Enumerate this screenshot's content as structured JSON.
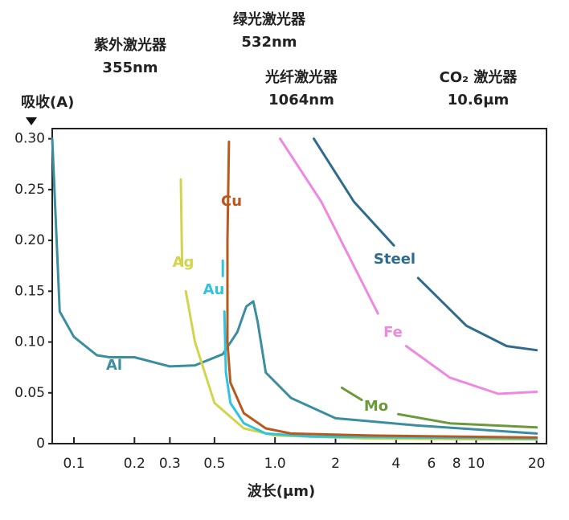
{
  "chart_data": {
    "type": "line",
    "y_label": "吸收(A)",
    "x_label": "波长(μm)",
    "annotations": [
      {
        "text": "紫外激光器",
        "subtext": "355nm"
      },
      {
        "text": "绿光激光器",
        "subtext": "532nm"
      },
      {
        "text": "光纤激光器",
        "subtext": "1064nm"
      },
      {
        "text": "CO₂ 激光器",
        "subtext": "10.6μm"
      }
    ],
    "xscale": "log",
    "xlim": [
      0.078,
      22.4
    ],
    "xticks": [
      0.1,
      0.2,
      0.3,
      0.5,
      {
        "value": 1,
        "label": "1.0"
      },
      2,
      4,
      6,
      8,
      10,
      20
    ],
    "ylim": [
      0,
      0.31
    ],
    "yticks": [
      0,
      {
        "value": 0.05,
        "label": "0.05"
      },
      {
        "value": 0.1,
        "label": "0.10"
      },
      {
        "value": 0.15,
        "label": "0.15"
      },
      {
        "value": 0.2,
        "label": "0.20"
      },
      {
        "value": 0.25,
        "label": "0.25"
      },
      {
        "value": 0.3,
        "label": "0.30"
      }
    ],
    "series": [
      {
        "name": "Al",
        "color": "#3a8ea0",
        "x": [
          0.078,
          0.085,
          0.1,
          0.13,
          0.15,
          0.2,
          0.3,
          0.4,
          0.55,
          0.65,
          0.72,
          0.78,
          0.82,
          0.9,
          1.2,
          2,
          5,
          20
        ],
        "values": [
          0.3,
          0.13,
          0.105,
          0.087,
          0.085,
          0.085,
          0.076,
          0.077,
          0.088,
          0.11,
          0.135,
          0.14,
          0.12,
          0.07,
          0.045,
          0.025,
          0.018,
          0.01
        ]
      },
      {
        "name": "Ag",
        "color": "#d2d44e",
        "x": [
          0.34,
          0.345,
          null,
          0.36,
          0.4,
          0.5,
          0.7,
          1,
          3,
          20
        ],
        "values": [
          0.26,
          0.175,
          null,
          0.15,
          0.1,
          0.04,
          0.015,
          0.008,
          0.005,
          0.004
        ]
      },
      {
        "name": "Au",
        "color": "#2ec4e0",
        "x": [
          0.55,
          0.55,
          null,
          0.56,
          0.57,
          0.6,
          0.7,
          0.9,
          1.5,
          20
        ],
        "values": [
          0.18,
          0.165,
          null,
          0.13,
          0.07,
          0.04,
          0.02,
          0.01,
          0.007,
          0.005
        ]
      },
      {
        "name": "Cu",
        "color": "#b85a1e",
        "x": [
          0.59,
          0.58,
          0.58,
          0.6,
          0.7,
          0.9,
          1.2,
          3,
          20
        ],
        "values": [
          0.297,
          0.2,
          0.1,
          0.06,
          0.03,
          0.015,
          0.01,
          0.008,
          0.006
        ]
      },
      {
        "name": "Steel",
        "color": "#2f6b8c",
        "x": [
          1.56,
          2.47,
          3.9,
          null,
          5.15,
          8.95,
          14.2,
          20
        ],
        "values": [
          0.3,
          0.238,
          0.195,
          null,
          0.163,
          0.116,
          0.096,
          0.092
        ]
      },
      {
        "name": "Fe",
        "color": "#ee88e0",
        "x": [
          1.06,
          1.7,
          3.25,
          null,
          4.49,
          7.4,
          12.9,
          20
        ],
        "values": [
          0.3,
          0.238,
          0.128,
          null,
          0.096,
          0.065,
          0.049,
          0.051
        ]
      },
      {
        "name": "Mo",
        "color": "#6a9a3a",
        "x": [
          2.15,
          2.7,
          null,
          4.1,
          7.4,
          20
        ],
        "values": [
          0.055,
          0.043,
          null,
          0.029,
          0.02,
          0.016
        ]
      }
    ]
  }
}
